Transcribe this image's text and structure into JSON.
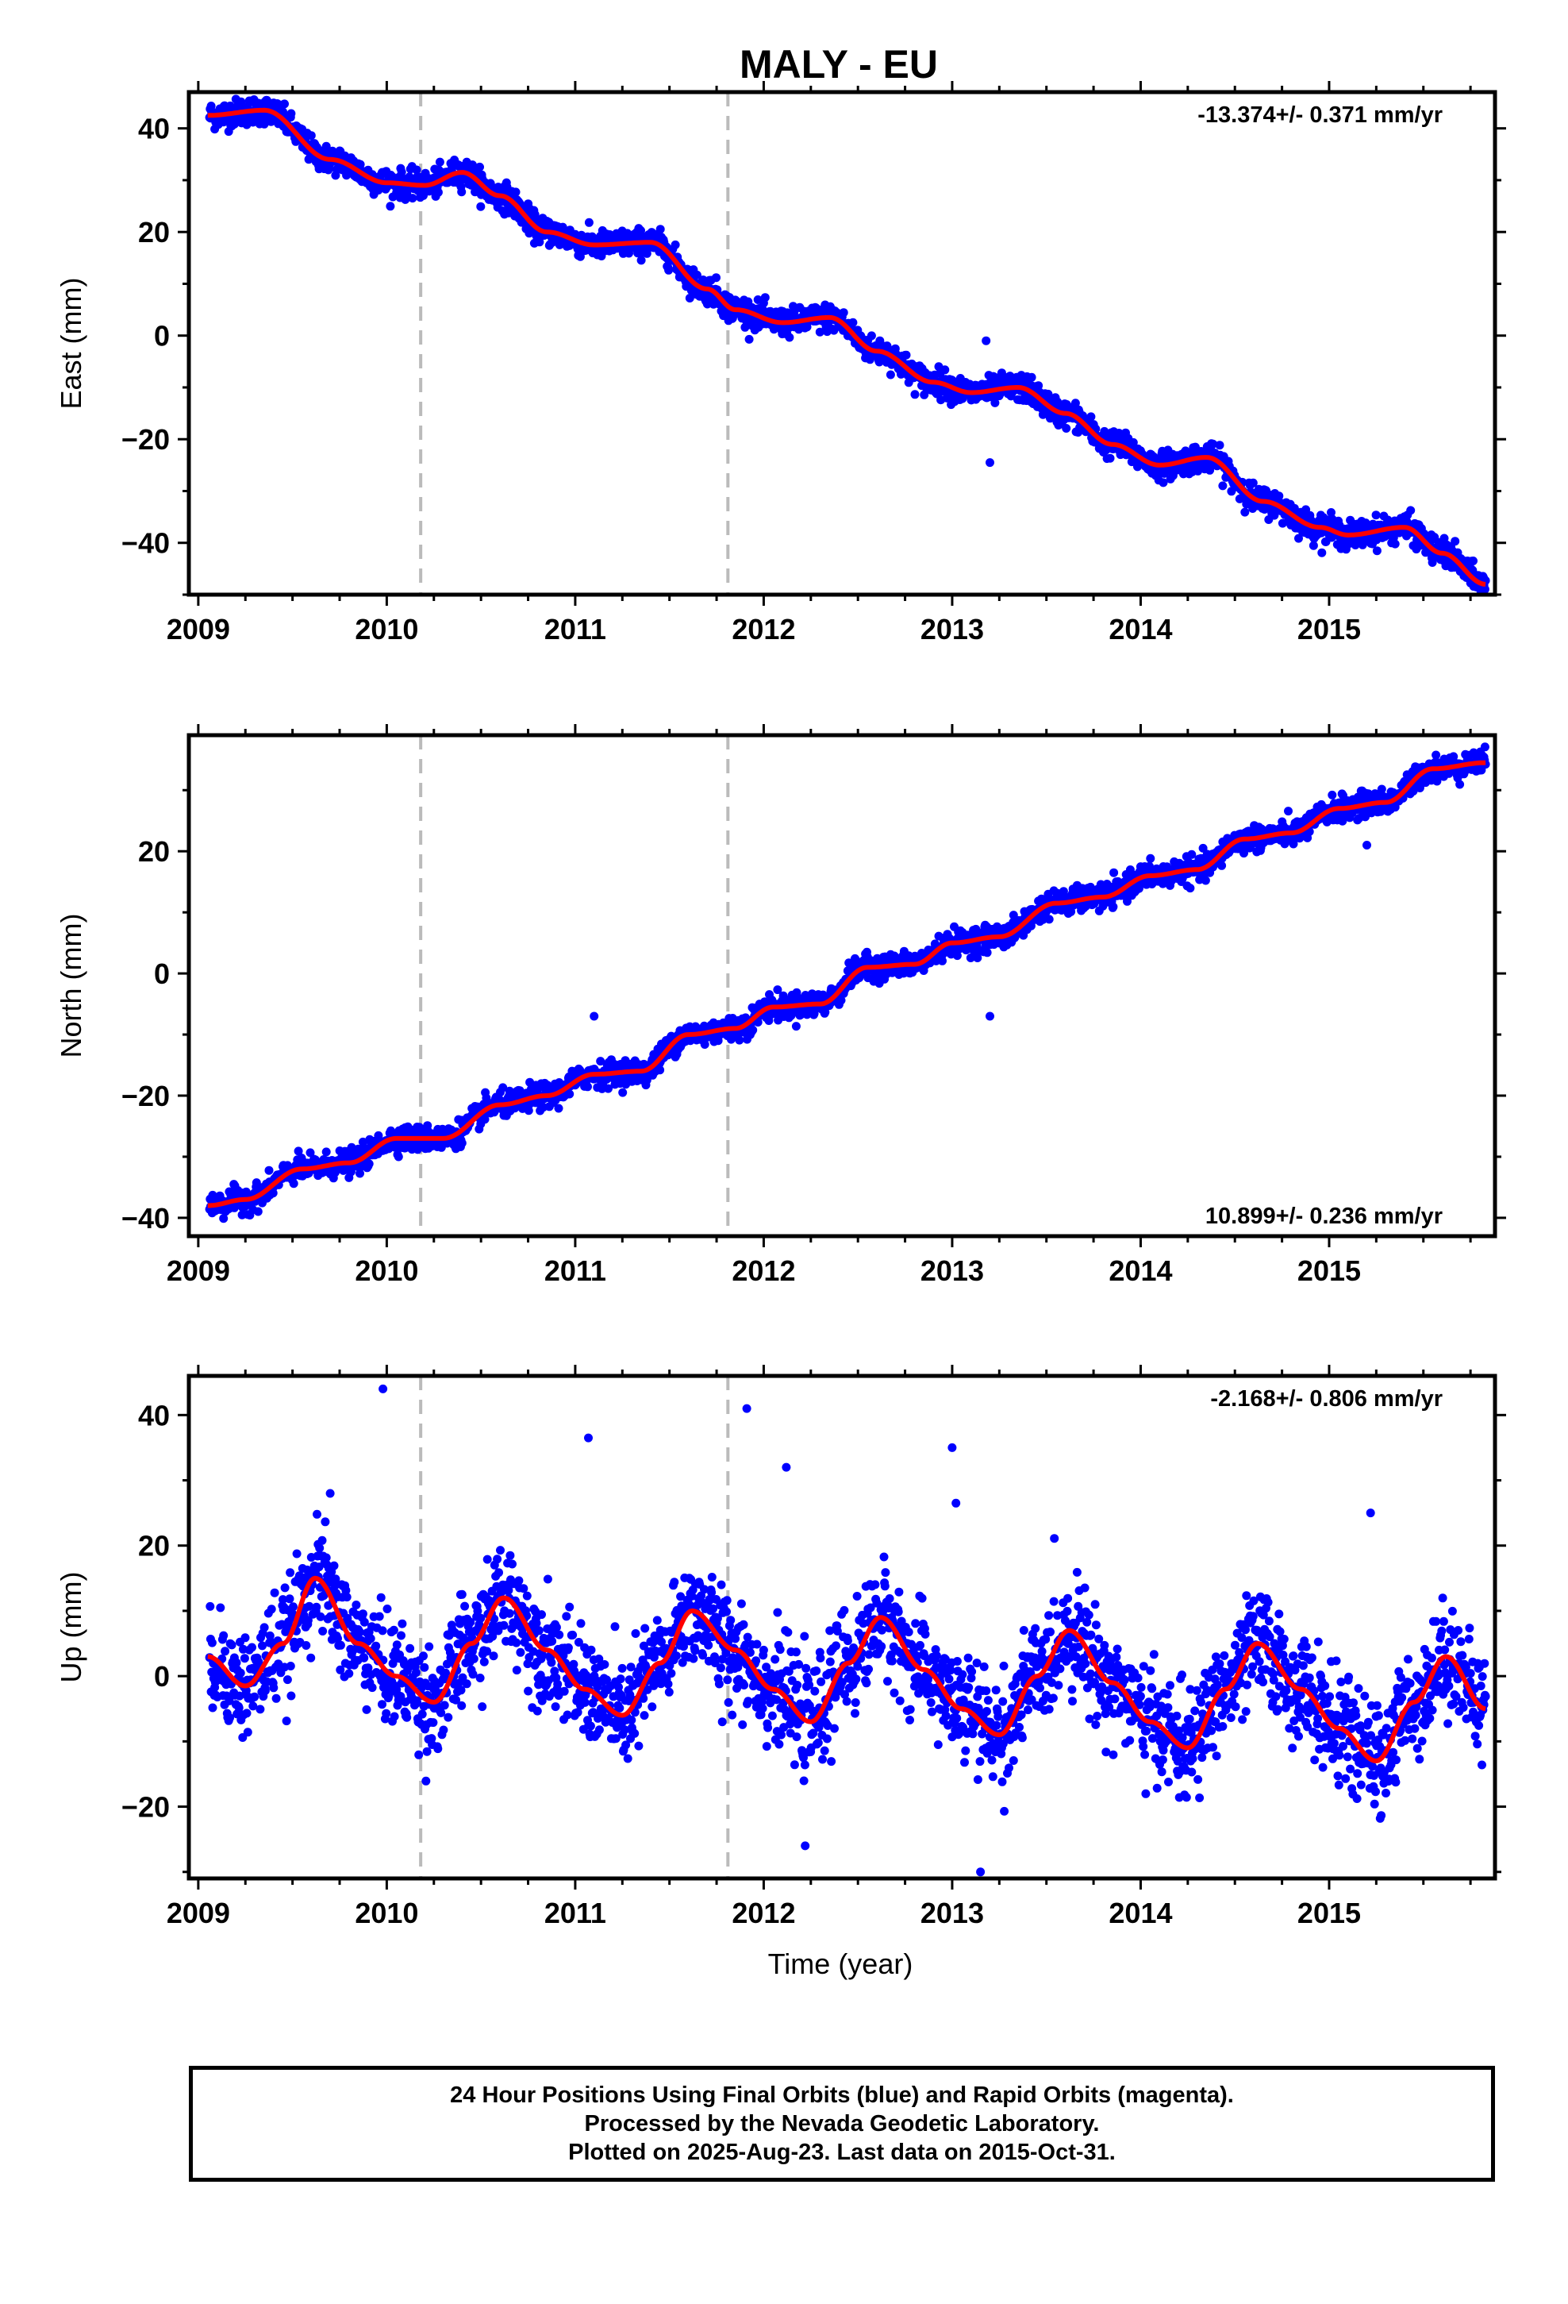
{
  "title": "MALY - EU",
  "footer": {
    "line1": "24 Hour Positions Using Final Orbits (blue) and Rapid Orbits (magenta).",
    "line2": "Processed by the Nevada Geodetic Laboratory.",
    "line3": "Plotted on 2025-Aug-23. Last data on 2015-Oct-31."
  },
  "colors": {
    "points": "#0000ff",
    "fit": "#ff0000",
    "breaks": "#bbbbbb",
    "axes": "#000000"
  },
  "chart_data": [
    {
      "type": "scatter",
      "name": "east",
      "ylabel": "East (mm)",
      "xlabel": "",
      "rate_text": "-13.374+/- 0.371 mm/yr",
      "rate_position": "top-right",
      "xlim": [
        2008.95,
        2015.88
      ],
      "ylim": [
        -50,
        47
      ],
      "xticks": [
        2009,
        2010,
        2011,
        2012,
        2013,
        2014,
        2015
      ],
      "yticks": [
        -40,
        -20,
        0,
        20,
        40
      ],
      "vlines": [
        2010.18,
        2011.81
      ],
      "x_start": 2009.06,
      "x_end": 2015.83,
      "trend_mm_per_yr": -13.374,
      "trend_start": 42,
      "amplitude": 2.5,
      "phase": 0.35,
      "noise": 1.3,
      "fit_knots": [
        [
          2009.05,
          42.5
        ],
        [
          2009.35,
          43.5
        ],
        [
          2009.7,
          34
        ],
        [
          2010.0,
          29.5
        ],
        [
          2010.2,
          29
        ],
        [
          2010.4,
          31.5
        ],
        [
          2010.6,
          27
        ],
        [
          2010.85,
          20
        ],
        [
          2011.1,
          17.5
        ],
        [
          2011.4,
          18
        ],
        [
          2011.7,
          9
        ],
        [
          2011.85,
          5
        ],
        [
          2012.1,
          2.5
        ],
        [
          2012.35,
          3.5
        ],
        [
          2012.6,
          -3
        ],
        [
          2012.9,
          -9
        ],
        [
          2013.1,
          -11
        ],
        [
          2013.35,
          -10
        ],
        [
          2013.6,
          -15
        ],
        [
          2013.85,
          -21
        ],
        [
          2014.1,
          -25
        ],
        [
          2014.35,
          -23.5
        ],
        [
          2014.65,
          -32
        ],
        [
          2014.95,
          -37
        ],
        [
          2015.1,
          -38.5
        ],
        [
          2015.4,
          -37
        ],
        [
          2015.6,
          -42
        ],
        [
          2015.83,
          -48
        ]
      ],
      "outliers": [
        [
          2013.2,
          -24.5
        ],
        [
          2013.18,
          -1
        ]
      ]
    },
    {
      "type": "scatter",
      "name": "north",
      "ylabel": "North (mm)",
      "xlabel": "",
      "rate_text": "10.899+/- 0.236 mm/yr",
      "rate_position": "bottom-right",
      "xlim": [
        2008.95,
        2015.88
      ],
      "ylim": [
        -43,
        39
      ],
      "xticks": [
        2009,
        2010,
        2011,
        2012,
        2013,
        2014,
        2015
      ],
      "yticks": [
        -40,
        -20,
        0,
        20
      ],
      "vlines": [
        2010.18,
        2011.81
      ],
      "x_start": 2009.06,
      "x_end": 2015.83,
      "trend_mm_per_yr": 10.899,
      "trend_start": -38,
      "amplitude": 1.6,
      "phase": 0.1,
      "noise": 1.0,
      "fit_knots": [
        [
          2009.05,
          -38
        ],
        [
          2009.25,
          -37
        ],
        [
          2009.55,
          -32
        ],
        [
          2009.8,
          -31
        ],
        [
          2010.05,
          -27
        ],
        [
          2010.3,
          -27
        ],
        [
          2010.6,
          -21.5
        ],
        [
          2010.85,
          -20
        ],
        [
          2011.1,
          -16.5
        ],
        [
          2011.35,
          -16
        ],
        [
          2011.6,
          -10
        ],
        [
          2011.85,
          -9
        ],
        [
          2012.05,
          -5.5
        ],
        [
          2012.3,
          -5
        ],
        [
          2012.55,
          1
        ],
        [
          2012.8,
          1.5
        ],
        [
          2013.0,
          5
        ],
        [
          2013.25,
          6
        ],
        [
          2013.55,
          11.5
        ],
        [
          2013.8,
          12.5
        ],
        [
          2014.05,
          16
        ],
        [
          2014.3,
          17
        ],
        [
          2014.55,
          22
        ],
        [
          2014.8,
          23
        ],
        [
          2015.05,
          27
        ],
        [
          2015.3,
          28
        ],
        [
          2015.55,
          33.5
        ],
        [
          2015.83,
          34.5
        ]
      ],
      "outliers": [
        [
          2013.2,
          -7
        ],
        [
          2011.1,
          -7
        ],
        [
          2015.2,
          21
        ]
      ]
    },
    {
      "type": "scatter",
      "name": "up",
      "ylabel": "Up (mm)",
      "xlabel": "Time (year)",
      "rate_text": "-2.168+/- 0.806 mm/yr",
      "rate_position": "top-right",
      "xlim": [
        2008.95,
        2015.88
      ],
      "ylim": [
        -31,
        46
      ],
      "xticks": [
        2009,
        2010,
        2011,
        2012,
        2013,
        2014,
        2015
      ],
      "yticks": [
        -20,
        0,
        20,
        40
      ],
      "vlines": [
        2010.18,
        2011.81
      ],
      "x_start": 2009.06,
      "x_end": 2015.83,
      "trend_mm_per_yr": -2.168,
      "trend_start": 3,
      "amplitude": 9,
      "phase": 0.6,
      "noise": 4.0,
      "fit_knots": [
        [
          2009.05,
          3
        ],
        [
          2009.25,
          -1.5
        ],
        [
          2009.45,
          5
        ],
        [
          2009.62,
          15
        ],
        [
          2009.85,
          5
        ],
        [
          2010.05,
          0
        ],
        [
          2010.25,
          -4
        ],
        [
          2010.45,
          5
        ],
        [
          2010.62,
          12
        ],
        [
          2010.85,
          4
        ],
        [
          2011.05,
          -2
        ],
        [
          2011.25,
          -6
        ],
        [
          2011.45,
          2
        ],
        [
          2011.62,
          10
        ],
        [
          2011.85,
          4
        ],
        [
          2012.05,
          -2
        ],
        [
          2012.25,
          -7
        ],
        [
          2012.45,
          2
        ],
        [
          2012.62,
          9
        ],
        [
          2012.85,
          1
        ],
        [
          2013.05,
          -5
        ],
        [
          2013.25,
          -9
        ],
        [
          2013.45,
          0
        ],
        [
          2013.62,
          7
        ],
        [
          2013.85,
          -1
        ],
        [
          2014.05,
          -7
        ],
        [
          2014.25,
          -11
        ],
        [
          2014.45,
          -2
        ],
        [
          2014.62,
          5
        ],
        [
          2014.85,
          -2
        ],
        [
          2015.05,
          -8
        ],
        [
          2015.25,
          -13
        ],
        [
          2015.45,
          -4
        ],
        [
          2015.62,
          3
        ],
        [
          2015.83,
          -5
        ]
      ],
      "outliers": [
        [
          2009.98,
          44
        ],
        [
          2011.07,
          36.5
        ],
        [
          2011.91,
          41
        ],
        [
          2012.12,
          32
        ],
        [
          2013.0,
          35
        ],
        [
          2013.02,
          26.5
        ],
        [
          2009.7,
          28
        ],
        [
          2012.22,
          -26
        ],
        [
          2013.15,
          -30
        ],
        [
          2015.22,
          25
        ],
        [
          2011.78,
          -7
        ]
      ]
    }
  ]
}
